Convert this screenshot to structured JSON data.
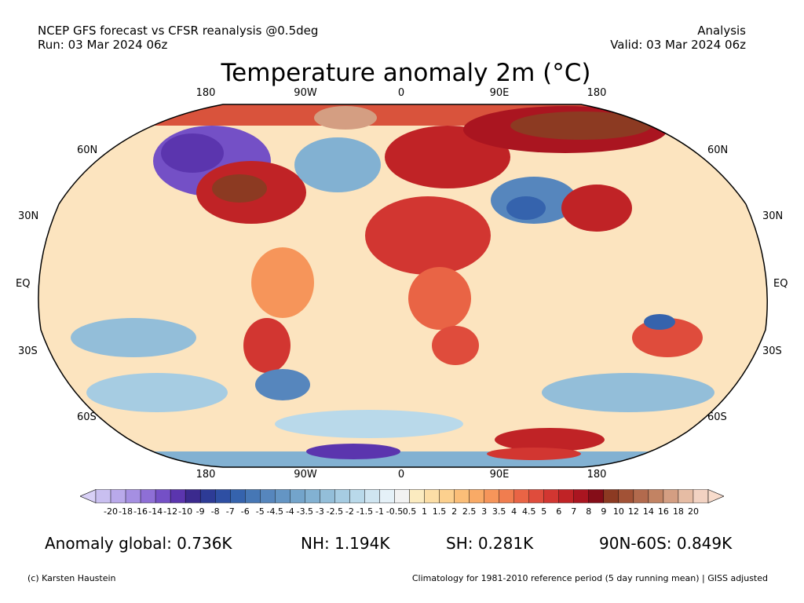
{
  "header": {
    "line1_left": "NCEP GFS forecast vs CFSR reanalysis @0.5deg",
    "line2_left": "Run: 03 Mar 2024 06z",
    "line1_right": "Analysis",
    "line2_right": "Valid: 03 Mar 2024 06z"
  },
  "title": "Temperature anomaly 2m (°C)",
  "map": {
    "projection": "Robinson",
    "lon_labels_top": [
      "180",
      "90W",
      "0",
      "90E",
      "180"
    ],
    "lon_labels_bottom": [
      "180",
      "90W",
      "0",
      "90E",
      "180"
    ],
    "lat_labels_left": [
      "60N",
      "30N",
      "EQ",
      "30S",
      "60S"
    ],
    "lat_labels_right": [
      "60N",
      "30N",
      "EQ",
      "30S",
      "60S"
    ]
  },
  "colorbar": {
    "ticks": [
      "-20",
      "-18",
      "-16",
      "-14",
      "-12",
      "-10",
      "-9",
      "-8",
      "-7",
      "-6",
      "-5",
      "-4.5",
      "-4",
      "-3.5",
      "-3",
      "-2.5",
      "-2",
      "-1.5",
      "-1",
      "-0.5",
      "0.5",
      "1",
      "1.5",
      "2",
      "2.5",
      "3",
      "3.5",
      "4",
      "4.5",
      "5",
      "6",
      "7",
      "8",
      "9",
      "10",
      "12",
      "14",
      "16",
      "18",
      "20"
    ],
    "colors": [
      "#c9bff0",
      "#b9a9ea",
      "#a58fe2",
      "#8e6fd6",
      "#7450c6",
      "#5b35ae",
      "#3b2a8e",
      "#2d3b96",
      "#2e4fa3",
      "#3563ad",
      "#4677b5",
      "#5686bd",
      "#6495c4",
      "#73a4cb",
      "#82b1d2",
      "#93bed9",
      "#a6cce2",
      "#b9d9ea",
      "#cfe5f1",
      "#e5f1f8",
      "#f2f2f2",
      "#fbebc0",
      "#fcdea6",
      "#fcd08e",
      "#fbbe78",
      "#f9aa66",
      "#f6955a",
      "#f07d4f",
      "#e96445",
      "#df4c3c",
      "#d23631",
      "#c02326",
      "#aa1520",
      "#850d18",
      "#8c3a22",
      "#a25236",
      "#b26a4d",
      "#c28363",
      "#d49e82",
      "#e6bca4",
      "#f2d2c2"
    ],
    "under_color": "#d8d0f6",
    "over_color": "#f8dccc"
  },
  "stats": {
    "global": "Anomaly global: 0.736K",
    "nh": "NH: 1.194K",
    "sh": "SH: 0.281K",
    "arctic": "90N-60S: 0.849K"
  },
  "footer": {
    "left": "(c) Karsten Haustein",
    "right": "Climatology for 1981-2010 reference period (5 day running mean) | GISS adjusted"
  }
}
